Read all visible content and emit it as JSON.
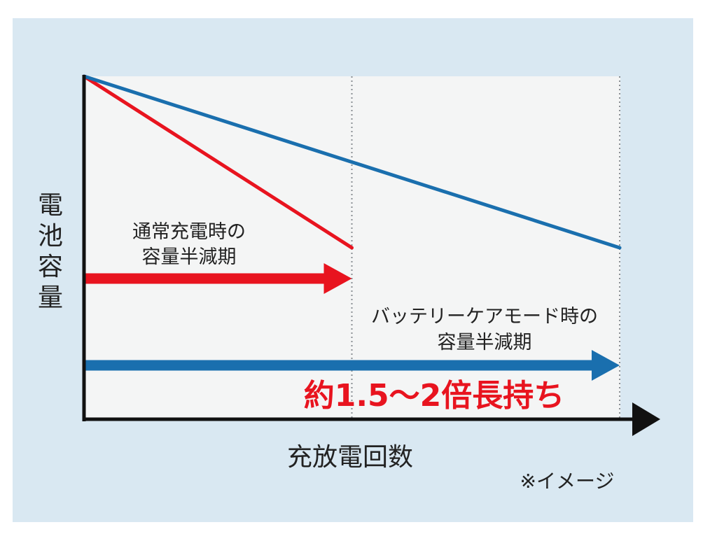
{
  "chart_data": {
    "type": "line",
    "title": "",
    "xlabel": "充放電回数",
    "ylabel": "電池容量",
    "xlim": [
      0,
      2
    ],
    "ylim": [
      0,
      1
    ],
    "grid": false,
    "series": [
      {
        "name": "",
        "color": "#e8141f",
        "x": [
          0,
          1
        ],
        "y": [
          1.0,
          0.5
        ]
      },
      {
        "name": "",
        "color": "#1a6fae",
        "x": [
          0,
          2
        ],
        "y": [
          1.0,
          0.5
        ]
      }
    ],
    "reference_lines_x": [
      1,
      2
    ],
    "arrows": [
      {
        "color": "#e8141f",
        "to_x": 1
      },
      {
        "color": "#1a6fae",
        "to_x": 2
      }
    ],
    "annotations": [
      {
        "lines": [
          "通常充電時の",
          "容量半減期"
        ]
      },
      {
        "lines": [
          "バッテリーケアモード時の",
          "容量半減期"
        ]
      }
    ],
    "highlight": "約1.5〜2倍長持ち",
    "note": "※イメージ"
  },
  "colors": {
    "panel": "#d9e8f2",
    "plot_area": "#f4f5f5",
    "axis": "#111111",
    "normal": "#e8141f",
    "care": "#1a6fae"
  }
}
